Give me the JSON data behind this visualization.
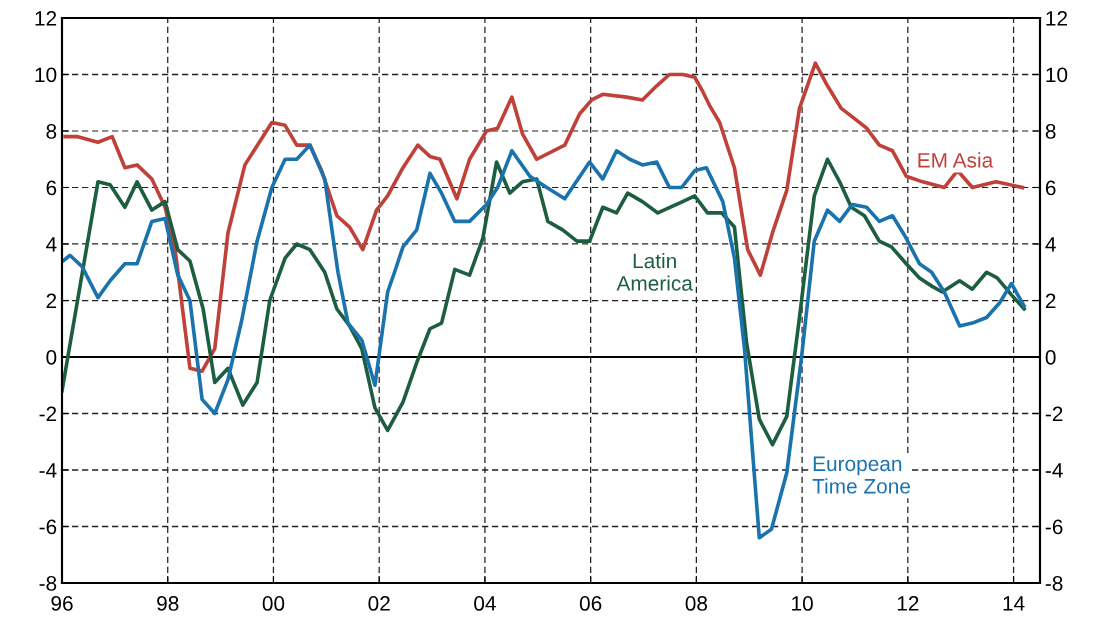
{
  "chart_data": {
    "type": "line",
    "xlim": [
      1996,
      2014.5
    ],
    "xticks": [
      {
        "value": 1996,
        "label": "96"
      },
      {
        "value": 1998,
        "label": "98"
      },
      {
        "value": 2000,
        "label": "00"
      },
      {
        "value": 2002,
        "label": "02"
      },
      {
        "value": 2004,
        "label": "04"
      },
      {
        "value": 2006,
        "label": "06"
      },
      {
        "value": 2008,
        "label": "08"
      },
      {
        "value": 2010,
        "label": "10"
      },
      {
        "value": 2012,
        "label": "12"
      },
      {
        "value": 2014,
        "label": "14"
      }
    ],
    "ylim": [
      -8,
      12
    ],
    "yticks": [
      -8,
      -6,
      -4,
      -2,
      0,
      2,
      4,
      6,
      8,
      10,
      12
    ],
    "y2lim": [
      -8,
      12
    ],
    "y2ticks": [
      -8,
      -6,
      -4,
      -2,
      0,
      2,
      4,
      6,
      8,
      10,
      12
    ],
    "grid": true,
    "legend": false,
    "line_style": "solid",
    "marker": "none",
    "ref_lines": [
      {
        "axis": "y",
        "value": 0,
        "color": "#000000",
        "line_style": "solid"
      }
    ],
    "series": [
      {
        "name": "EM Asia",
        "color": "#c0403a",
        "x": [
          1996.06,
          1996.3,
          1996.68,
          1996.95,
          1997.19,
          1997.42,
          1997.7,
          1997.95,
          1998.14,
          1998.42,
          1998.65,
          1998.89,
          1999.14,
          1999.46,
          1999.97,
          2000.22,
          2000.44,
          2000.69,
          2000.91,
          2001.2,
          2001.44,
          2001.69,
          2001.95,
          2002.16,
          2002.45,
          2002.73,
          2002.96,
          2003.15,
          2003.47,
          2003.71,
          2004.03,
          2004.24,
          2004.51,
          2004.71,
          2004.98,
          2005.51,
          2005.79,
          2006.02,
          2006.23,
          2006.68,
          2006.98,
          2007.25,
          2007.49,
          2007.74,
          2007.97,
          2008.12,
          2008.25,
          2008.44,
          2008.72,
          2008.97,
          2009.21,
          2009.44,
          2009.71,
          2009.95,
          2010.25,
          2010.48,
          2010.74,
          2010.95,
          2011.22,
          2011.46,
          2011.71,
          2011.97,
          2012.28,
          2012.69,
          2012.94,
          2013.22,
          2013.67,
          2014.17
        ],
        "values": [
          7.8,
          7.8,
          7.6,
          7.8,
          6.7,
          6.8,
          6.3,
          5.3,
          3.8,
          -0.4,
          -0.5,
          0.3,
          4.4,
          6.8,
          8.3,
          8.2,
          7.5,
          7.5,
          6.6,
          5.0,
          4.6,
          3.8,
          5.2,
          5.7,
          6.7,
          7.5,
          7.1,
          7.0,
          5.6,
          7.0,
          8.0,
          8.1,
          9.2,
          7.9,
          7.0,
          7.5,
          8.6,
          9.1,
          9.3,
          9.2,
          9.1,
          9.6,
          10.0,
          10.0,
          9.9,
          9.4,
          8.9,
          8.3,
          6.7,
          3.8,
          2.9,
          4.4,
          5.9,
          8.8,
          10.4,
          9.6,
          8.8,
          8.5,
          8.1,
          7.5,
          7.3,
          6.4,
          6.2,
          6.0,
          6.6,
          6.0,
          6.2,
          6.0
        ]
      },
      {
        "name": "Latin America",
        "color": "#1e5e40",
        "x": [
          1996.0,
          1996.68,
          1996.91,
          1997.19,
          1997.42,
          1997.7,
          1997.95,
          1998.19,
          1998.42,
          1998.67,
          1998.89,
          1999.14,
          1999.42,
          1999.69,
          1999.93,
          2000.22,
          2000.44,
          2000.69,
          2000.97,
          2001.2,
          2001.44,
          2001.67,
          2001.92,
          2002.16,
          2002.45,
          2002.71,
          2002.96,
          2003.18,
          2003.43,
          2003.71,
          2003.96,
          2004.22,
          2004.47,
          2004.71,
          2004.98,
          2005.19,
          2005.47,
          2005.74,
          2005.98,
          2006.23,
          2006.49,
          2006.7,
          2006.98,
          2007.27,
          2007.74,
          2007.97,
          2008.21,
          2008.48,
          2008.72,
          2008.95,
          2009.19,
          2009.44,
          2009.71,
          2009.95,
          2010.23,
          2010.48,
          2010.71,
          2010.93,
          2011.18,
          2011.46,
          2011.69,
          2011.97,
          2012.22,
          2012.46,
          2012.65,
          2012.98,
          2013.22,
          2013.49,
          2013.69,
          2013.96,
          2014.2
        ],
        "values": [
          -1.2,
          6.2,
          6.1,
          5.3,
          6.2,
          5.2,
          5.5,
          3.8,
          3.4,
          1.7,
          -0.9,
          -0.4,
          -1.7,
          -0.9,
          2.0,
          3.5,
          4.0,
          3.8,
          3.0,
          1.7,
          1.1,
          0.3,
          -1.8,
          -2.6,
          -1.6,
          -0.2,
          1.0,
          1.2,
          3.1,
          2.9,
          4.2,
          6.9,
          5.8,
          6.2,
          6.3,
          4.8,
          4.5,
          4.1,
          4.1,
          5.3,
          5.1,
          5.8,
          5.5,
          5.1,
          5.5,
          5.7,
          5.1,
          5.1,
          4.6,
          0.5,
          -2.2,
          -3.1,
          -2.1,
          1.4,
          5.7,
          7.0,
          6.2,
          5.3,
          5.0,
          4.1,
          3.9,
          3.3,
          2.8,
          2.5,
          2.3,
          2.7,
          2.4,
          3.0,
          2.8,
          2.2,
          1.7
        ]
      },
      {
        "name": "European Time Zone",
        "color": "#1a73ad",
        "x": [
          1996.02,
          1996.15,
          1996.38,
          1996.68,
          1996.91,
          1997.19,
          1997.42,
          1997.7,
          1997.95,
          1998.19,
          1998.42,
          1998.65,
          1998.89,
          1999.14,
          1999.4,
          1999.69,
          1999.97,
          2000.22,
          2000.44,
          2000.69,
          2000.97,
          2001.22,
          2001.41,
          2001.67,
          2001.92,
          2002.16,
          2002.29,
          2002.45,
          2002.71,
          2002.96,
          2003.18,
          2003.43,
          2003.71,
          2004.03,
          2004.24,
          2004.51,
          2004.85,
          2005.17,
          2005.51,
          2005.98,
          2006.23,
          2006.49,
          2006.74,
          2006.98,
          2007.25,
          2007.49,
          2007.72,
          2007.97,
          2008.19,
          2008.5,
          2008.72,
          2008.91,
          2009.19,
          2009.42,
          2009.71,
          2009.99,
          2010.23,
          2010.48,
          2010.71,
          2010.95,
          2011.22,
          2011.46,
          2011.71,
          2011.94,
          2012.22,
          2012.45,
          2012.69,
          2012.98,
          2013.22,
          2013.49,
          2013.73,
          2013.96,
          2014.2
        ],
        "values": [
          3.4,
          3.6,
          3.2,
          2.1,
          2.7,
          3.3,
          3.3,
          4.8,
          4.9,
          2.9,
          2.0,
          -1.5,
          -2.0,
          -0.8,
          1.3,
          4.1,
          6.0,
          7.0,
          7.0,
          7.5,
          6.3,
          3.0,
          1.2,
          0.6,
          -1.0,
          2.3,
          3.0,
          3.9,
          4.5,
          6.5,
          5.8,
          4.8,
          4.8,
          5.4,
          6.0,
          7.3,
          6.4,
          6.0,
          5.6,
          6.9,
          6.3,
          7.3,
          7.0,
          6.8,
          6.9,
          6.0,
          6.0,
          6.6,
          6.7,
          5.5,
          3.5,
          0.3,
          -6.4,
          -6.1,
          -4.1,
          0.0,
          4.1,
          5.2,
          4.8,
          5.4,
          5.3,
          4.8,
          5.0,
          4.3,
          3.3,
          3.0,
          2.3,
          1.1,
          1.2,
          1.4,
          1.9,
          2.6,
          1.8
        ]
      }
    ]
  }
}
